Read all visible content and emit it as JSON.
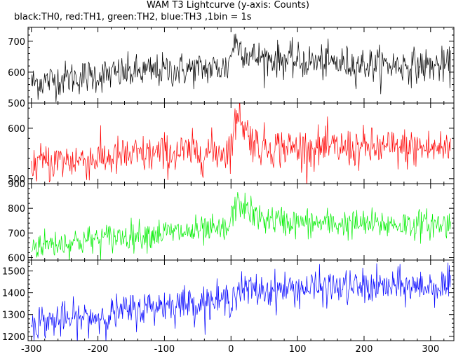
{
  "chart_data": {
    "type": "line",
    "title": "WAM T3 Lightcurve (y-axis: Counts)",
    "subtitle": "black:TH0, red:TH1, green:TH2, blue:TH3 ,1bin = 1s",
    "xlabel": "",
    "ylabel": "",
    "xlim": [
      -305,
      335
    ],
    "x_ticks": [
      -300,
      -200,
      -100,
      0,
      100,
      200,
      300
    ],
    "grid": false,
    "legend": "none",
    "panels": [
      {
        "series_name": "TH0",
        "color": "#000000",
        "ylim": [
          500,
          745
        ],
        "y_ticks": [
          500,
          600,
          700
        ],
        "y_tick_labels": [
          "500",
          "600",
          "700"
        ],
        "trend_x": [
          -300,
          -250,
          -200,
          -150,
          -100,
          -50,
          -5,
          5,
          30,
          100,
          200,
          300,
          330
        ],
        "trend_y": [
          565,
          580,
          590,
          598,
          605,
          610,
          615,
          700,
          650,
          635,
          625,
          620,
          620
        ],
        "noise_sd": 28
      },
      {
        "series_name": "TH1",
        "color": "#ff0000",
        "ylim": [
          490,
          650
        ],
        "y_ticks": [
          500,
          600
        ],
        "y_tick_labels": [
          "500",
          "600"
        ],
        "trend_x": [
          -300,
          -250,
          -200,
          -150,
          -100,
          -50,
          -5,
          2,
          12,
          20,
          40,
          100,
          200,
          300,
          330
        ],
        "trend_y": [
          530,
          535,
          540,
          545,
          550,
          552,
          555,
          575,
          640,
          600,
          565,
          560,
          560,
          560,
          560
        ],
        "noise_sd": 20
      },
      {
        "series_name": "TH2",
        "color": "#00ee00",
        "ylim": [
          590,
          900
        ],
        "y_ticks": [
          600,
          700,
          800,
          900
        ],
        "y_tick_labels": [
          "600",
          "700",
          "800",
          "900"
        ],
        "trend_x": [
          -300,
          -250,
          -200,
          -150,
          -100,
          -50,
          -5,
          5,
          15,
          40,
          100,
          200,
          300,
          330
        ],
        "trend_y": [
          650,
          660,
          675,
          690,
          700,
          705,
          710,
          800,
          820,
          760,
          740,
          735,
          735,
          735
        ],
        "noise_sd": 30
      },
      {
        "series_name": "TH3",
        "color": "#0000ff",
        "ylim": [
          1180,
          1550
        ],
        "y_ticks": [
          1200,
          1300,
          1400,
          1500
        ],
        "y_tick_labels": [
          "1200",
          "1300",
          "1400",
          "1500"
        ],
        "trend_x": [
          -300,
          -250,
          -200,
          -150,
          -100,
          -50,
          -5,
          10,
          50,
          100,
          200,
          300,
          330
        ],
        "trend_y": [
          1265,
          1275,
          1290,
          1320,
          1345,
          1355,
          1365,
          1410,
          1410,
          1420,
          1425,
          1430,
          1430
        ],
        "noise_sd": 40
      }
    ]
  }
}
